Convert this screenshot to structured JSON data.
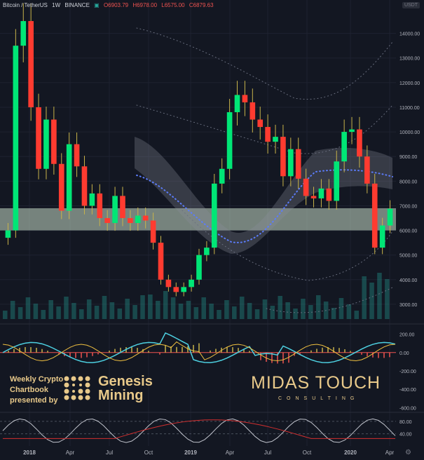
{
  "header": {
    "symbol": "Bitcoin / TetherUS",
    "interval": "1W",
    "exchange": "BINANCE",
    "open": "O6903.79",
    "high": "H6978.00",
    "low": "L6575.00",
    "close": "C6879.63",
    "currency_badge": "USDT"
  },
  "branding": {
    "line1": "Weekly Crypto",
    "line2": "Chartbook",
    "line3": "presented by",
    "sponsor_line1": "Genesis",
    "sponsor_line2": "Mining",
    "logo_main": "MIDAS TOUCH",
    "logo_sub": "CONSULTING"
  },
  "colors": {
    "background": "#131722",
    "up": "#00e676",
    "down": "#ff3b30",
    "highlight_band": "#c8dcc8",
    "cyan_line": "#4dd0e1",
    "yellow_line": "#f0c040",
    "brand_gold": "#e8c98a"
  },
  "chart_data": [
    {
      "type": "candlestick",
      "title": "Bitcoin / TetherUS · 1W · BINANCE",
      "y_axis_ticks": [
        "3000.00",
        "4000.00",
        "5000.00",
        "6000.00",
        "7000.00",
        "8000.00",
        "9000.00",
        "10000.00",
        "11000.00",
        "12000.00",
        "13000.00",
        "14000.00"
      ],
      "x_axis_ticks": [
        "2018",
        "Apr",
        "Jul",
        "Oct",
        "2019",
        "Apr",
        "Jul",
        "Oct",
        "2020",
        "Apr"
      ],
      "ylim": [
        2400,
        14900
      ],
      "approx_close_path": [
        6000,
        13500,
        14500,
        11000,
        8500,
        10500,
        8700,
        6800,
        9500,
        8600,
        7000,
        7500,
        6500,
        6300,
        7400,
        6500,
        6300,
        6600,
        6400,
        5500,
        4000,
        3700,
        3500,
        3700,
        4000,
        5000,
        5300,
        7900,
        8500,
        10800,
        11500,
        11200,
        10500,
        10200,
        9600,
        9800,
        8200,
        9300,
        8100,
        7400,
        7300,
        7700,
        7200,
        8800,
        10000,
        10100,
        9000,
        7900,
        5300,
        6200,
        6880
      ],
      "highlight_band": {
        "from": 6000,
        "to": 6900
      },
      "volume_series": "weekly volume bars (teal)",
      "indicator_panel_1": {
        "ticks": [
          "200.00",
          "0.00",
          "-200.00",
          "-400.00",
          "-600.00"
        ],
        "ylim": [
          -650,
          250
        ]
      },
      "indicator_panel_2": {
        "ticks": [
          "80.00",
          "40.00"
        ],
        "ylim": [
          10,
          100
        ]
      }
    }
  ]
}
